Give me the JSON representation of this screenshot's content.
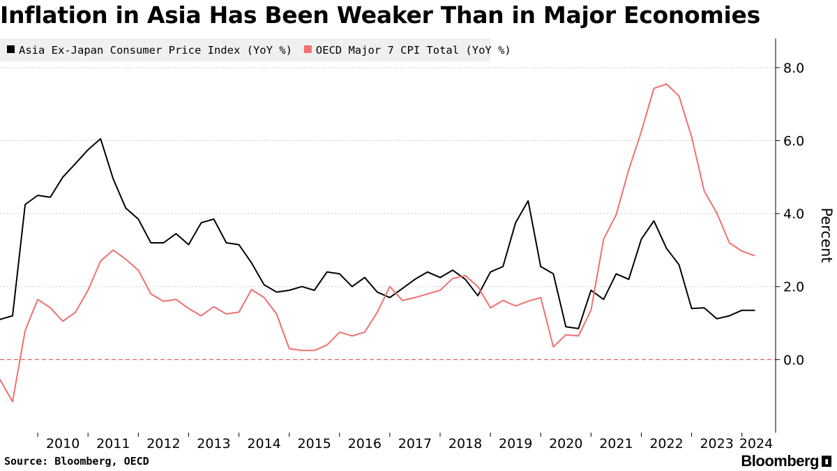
{
  "header": {
    "title": "Inflation in Asia Has Been Weaker Than in Major Economies"
  },
  "footer": {
    "source": "Source: Bloomberg, OECD",
    "brand": "Bloomberg"
  },
  "chart_data": {
    "type": "line",
    "title": "Inflation in Asia Has Been Weaker Than in Major Economies",
    "ylabel": "Percent",
    "xlabel": "",
    "ylim": [
      -2.0,
      8.8
    ],
    "xlim": [
      2009.25,
      2024.67
    ],
    "yticks": [
      0.0,
      2.0,
      4.0,
      6.0,
      8.0
    ],
    "ytick_labels": [
      "0.0",
      "2.0",
      "4.0",
      "6.0",
      "8.0"
    ],
    "xtick_labels": [
      "2010",
      "2011",
      "2012",
      "2013",
      "2014",
      "2015",
      "2016",
      "2017",
      "2018",
      "2019",
      "2020",
      "2021",
      "2022",
      "2023",
      "2024"
    ],
    "grid": "horizontal dotted",
    "axis_side": "right",
    "legend_position": "top-left",
    "reference_line": {
      "value": 0,
      "style": "dashed",
      "color": "#e06060"
    },
    "series": [
      {
        "name": "Asia Ex-Japan Consumer Price Index (YoY %)",
        "color": "#000000",
        "x": [
          2009.25,
          2009.5,
          2009.75,
          2010.0,
          2010.25,
          2010.5,
          2010.75,
          2011.0,
          2011.25,
          2011.5,
          2011.75,
          2012.0,
          2012.25,
          2012.5,
          2012.75,
          2013.0,
          2013.25,
          2013.5,
          2013.75,
          2014.0,
          2014.25,
          2014.5,
          2014.75,
          2015.0,
          2015.25,
          2015.5,
          2015.75,
          2016.0,
          2016.25,
          2016.5,
          2016.75,
          2017.0,
          2017.25,
          2017.5,
          2017.75,
          2018.0,
          2018.25,
          2018.5,
          2018.75,
          2019.0,
          2019.25,
          2019.5,
          2019.75,
          2020.0,
          2020.25,
          2020.5,
          2020.75,
          2021.0,
          2021.25,
          2021.5,
          2021.75,
          2022.0,
          2022.25,
          2022.5,
          2022.75,
          2023.0,
          2023.25,
          2023.5,
          2023.75,
          2024.0,
          2024.25
        ],
        "values": [
          1.1,
          1.2,
          4.25,
          4.5,
          4.45,
          5.0,
          5.37,
          5.75,
          6.05,
          4.95,
          4.15,
          3.85,
          3.2,
          3.2,
          3.45,
          3.15,
          3.75,
          3.85,
          3.2,
          3.15,
          2.65,
          2.05,
          1.85,
          1.9,
          2.0,
          1.9,
          2.4,
          2.35,
          2.0,
          2.25,
          1.85,
          1.7,
          1.95,
          2.2,
          2.4,
          2.25,
          2.45,
          2.2,
          1.75,
          2.4,
          2.55,
          3.75,
          4.35,
          2.55,
          2.35,
          0.9,
          0.85,
          1.9,
          1.65,
          2.35,
          2.2,
          3.3,
          3.8,
          3.05,
          2.6,
          1.4,
          1.42,
          1.12,
          1.2,
          1.35,
          1.35
        ]
      },
      {
        "name": "OECD Major 7 CPI Total (YoY %)",
        "color": "#f07070",
        "x": [
          2009.25,
          2009.5,
          2009.75,
          2010.0,
          2010.25,
          2010.5,
          2010.75,
          2011.0,
          2011.25,
          2011.5,
          2011.75,
          2012.0,
          2012.25,
          2012.5,
          2012.75,
          2013.0,
          2013.25,
          2013.5,
          2013.75,
          2014.0,
          2014.25,
          2014.5,
          2014.75,
          2015.0,
          2015.25,
          2015.5,
          2015.75,
          2016.0,
          2016.25,
          2016.5,
          2016.75,
          2017.0,
          2017.25,
          2017.5,
          2017.75,
          2018.0,
          2018.25,
          2018.5,
          2018.75,
          2019.0,
          2019.25,
          2019.5,
          2019.75,
          2020.0,
          2020.25,
          2020.5,
          2020.75,
          2021.0,
          2021.25,
          2021.5,
          2021.75,
          2022.0,
          2022.25,
          2022.5,
          2022.75,
          2023.0,
          2023.25,
          2023.5,
          2023.75,
          2024.0,
          2024.25
        ],
        "values": [
          -0.55,
          -1.15,
          0.8,
          1.65,
          1.42,
          1.05,
          1.3,
          1.9,
          2.7,
          3.0,
          2.75,
          2.45,
          1.8,
          1.6,
          1.65,
          1.4,
          1.2,
          1.45,
          1.25,
          1.3,
          1.92,
          1.7,
          1.25,
          0.3,
          0.25,
          0.25,
          0.4,
          0.75,
          0.65,
          0.75,
          1.3,
          2.0,
          1.62,
          1.7,
          1.8,
          1.9,
          2.22,
          2.3,
          2.0,
          1.42,
          1.62,
          1.47,
          1.6,
          1.7,
          0.35,
          0.68,
          0.65,
          1.35,
          3.3,
          3.97,
          5.2,
          6.25,
          7.43,
          7.55,
          7.22,
          6.1,
          4.62,
          4.02,
          3.2,
          2.97,
          2.85
        ]
      }
    ]
  }
}
